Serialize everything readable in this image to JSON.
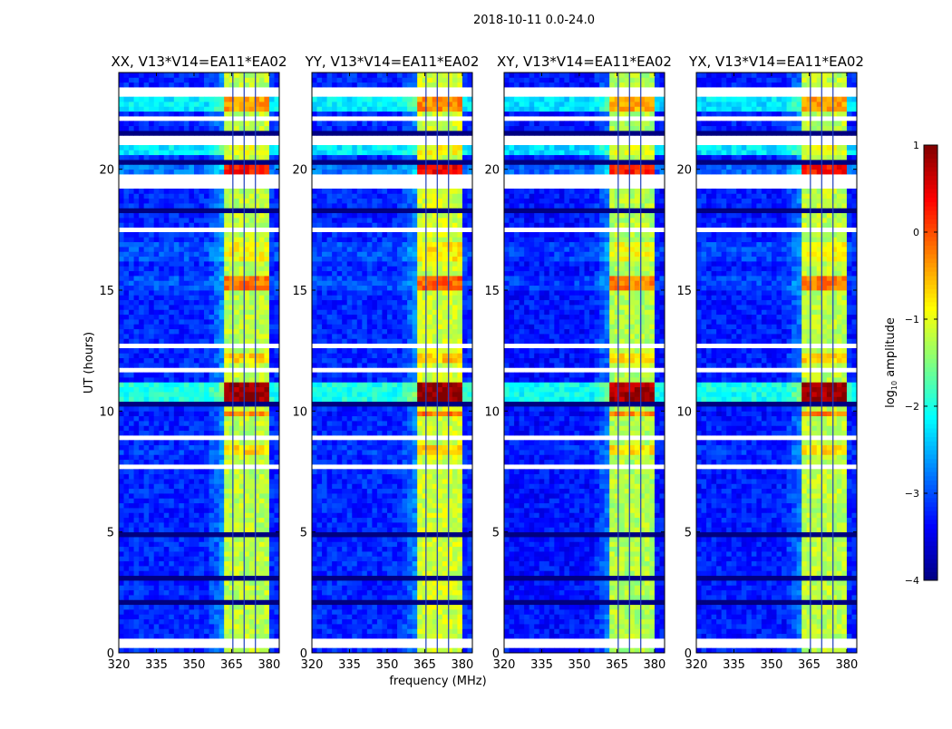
{
  "chart_data": {
    "type": "heatmap",
    "title": "2018-10-11 0.0-24.0",
    "xlabel": "frequency (MHz)",
    "ylabel": "UT (hours)",
    "xlim": [
      320,
      384
    ],
    "ylim": [
      0,
      24
    ],
    "xticks": [
      "320",
      "335",
      "350",
      "365",
      "380"
    ],
    "xtick_values": [
      320,
      335,
      350,
      365,
      380
    ],
    "yticks": [
      "0",
      "5",
      "10",
      "15",
      "20"
    ],
    "ytick_values": [
      0,
      5,
      10,
      15,
      20
    ],
    "colorbar": {
      "label": "log10 amplitude",
      "label_main": "log",
      "label_sub": "10",
      "label_rest": " amplitude",
      "clim": [
        -4,
        1
      ],
      "ticks": [
        "−4",
        "−3",
        "−2",
        "−1",
        "0",
        "1"
      ],
      "tick_values": [
        -4,
        -3,
        -2,
        -1,
        0,
        1
      ],
      "colormap": "jet"
    },
    "panels": [
      {
        "title": "XX, V13*V14=EA11*EA02",
        "band_offset": 0.0,
        "bg_offset": 0.0
      },
      {
        "title": "YY, V13*V14=EA11*EA02",
        "band_offset": 0.1,
        "bg_offset": 0.0
      },
      {
        "title": "XY, V13*V14=EA11*EA02",
        "band_offset": -0.05,
        "bg_offset": -0.1
      },
      {
        "title": "YX, V13*V14=EA11*EA02",
        "band_offset": 0.0,
        "bg_offset": -0.05
      }
    ],
    "rfi_band_mhz": [
      363,
      380
    ],
    "subband_edges_mhz": [
      365.5,
      370,
      374.5
    ],
    "background_level": -3.2,
    "band_level": -1.2,
    "time_segments": [
      {
        "t": [
          10.4,
          11.2
        ],
        "band": 0.85,
        "bg": -2.0
      },
      {
        "t": [
          19.8,
          20.3
        ],
        "band": 0.3,
        "bg": -2.8
      },
      {
        "t": [
          15.0,
          15.6
        ],
        "band": -0.2,
        "bg": -3.0
      },
      {
        "t": [
          22.5,
          23.0
        ],
        "band": -0.4,
        "bg": -2.2
      },
      {
        "t": [
          12.0,
          12.5
        ],
        "band": -0.7,
        "bg": -3.2
      },
      {
        "t": [
          8.2,
          8.7
        ],
        "band": -0.7,
        "bg": -3.1
      },
      {
        "t": [
          9.8,
          10.1
        ],
        "band": -0.3,
        "bg": -3.3
      },
      {
        "t": [
          20.6,
          21.0
        ],
        "band": -1.0,
        "bg": -2.2
      },
      {
        "t": [
          16.3,
          17.0
        ],
        "band": -0.9,
        "bg": -3.0
      }
    ],
    "flagged_blank_hours": [
      [
        0.3,
        0.55
      ],
      [
        0.95,
        1.05
      ],
      [
        7.7,
        7.8
      ],
      [
        8.9,
        9.0
      ],
      [
        11.6,
        11.75
      ],
      [
        12.7,
        12.9
      ],
      [
        15.6,
        15.7
      ],
      [
        17.5,
        17.6
      ],
      [
        19.2,
        19.75
      ],
      [
        21.1,
        21.4
      ],
      [
        22.1,
        22.2
      ],
      [
        23.0,
        23.4
      ]
    ],
    "zero_hours": [
      [
        2.0,
        2.2
      ],
      [
        3.1,
        3.3
      ],
      [
        4.9,
        5.1
      ],
      [
        10.2,
        10.4
      ],
      [
        11.8,
        11.9
      ],
      [
        18.2,
        18.5
      ],
      [
        20.3,
        20.5
      ],
      [
        21.5,
        21.65
      ]
    ]
  }
}
